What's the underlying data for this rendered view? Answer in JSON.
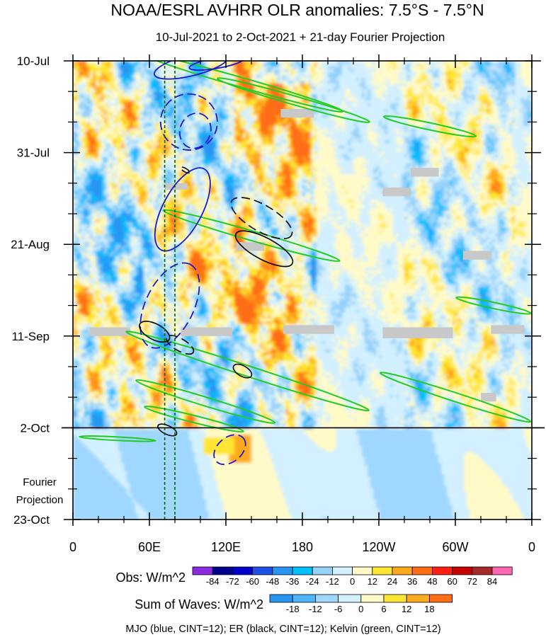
{
  "chart_data": {
    "type": "heatmap",
    "title": "NOAA/ESRL AVHRR OLR anomalies: 7.5°S - 7.5°N",
    "subtitle": "10-Jul-2021 to 2-Oct-2021 + 21-day Fourier Projection",
    "x_ticks": [
      "0",
      "60E",
      "120E",
      "180",
      "120W",
      "60W",
      "0"
    ],
    "x_tick_lon": [
      0,
      60,
      120,
      180,
      240,
      300,
      360
    ],
    "y_ticks": [
      "10-Jul",
      "31-Jul",
      "21-Aug",
      "11-Sep",
      "2-Oct",
      "23-Oct"
    ],
    "y_tick_day": [
      0,
      21,
      42,
      63,
      84,
      105
    ],
    "projection_start_day": 84,
    "projection_label_lines": [
      "Fourier",
      "Projection"
    ],
    "obs_legend": {
      "label": "Obs: W/m^2",
      "levels": [
        "-84",
        "-72",
        "-60",
        "-48",
        "-36",
        "-24",
        "-12",
        "0",
        "12",
        "24",
        "36",
        "48",
        "60",
        "72",
        "84"
      ],
      "colors": [
        "#8a2be2",
        "#00008b",
        "#0000cd",
        "#1e50e6",
        "#2896f0",
        "#00bfff",
        "#96d2fa",
        "#d2f0ff",
        "#fffac8",
        "#ffe632",
        "#ffaa1e",
        "#ff6e14",
        "#ff1e14",
        "#c80000",
        "#a52a2a",
        "#ff69b4"
      ]
    },
    "waves_legend": {
      "label": "Sum of Waves: W/m^2",
      "levels": [
        "-18",
        "-12",
        "-6",
        "0",
        "6",
        "12",
        "18"
      ],
      "colors": [
        "#2896f0",
        "#50b4fa",
        "#a0d7ff",
        "#d2f0ff",
        "#fffac8",
        "#ffe632",
        "#ffaa1e",
        "#ff6e14"
      ]
    },
    "footer": "MJO (blue, CINT=12); ER (black, CINT=12); Kelvin (green, CINT=12)",
    "contour_colors": {
      "mjo": "#1a1acc",
      "er": "#000000",
      "kelvin": "#22cc22",
      "marker": "#006400"
    },
    "marker_lons": [
      72,
      80
    ],
    "mjo_contours": [
      {
        "lon": 86,
        "day": 34,
        "rx": 36,
        "ry": 4.5,
        "angle": -62,
        "dashed": false
      },
      {
        "lon": 93,
        "day": 1,
        "rx": 30,
        "ry": 2.4,
        "angle": -14,
        "dashed": false
      },
      {
        "lon": 113,
        "day": 0.5,
        "rx": 22,
        "ry": 1.2,
        "angle": -10,
        "dashed": false
      },
      {
        "lon": 91,
        "day": 14,
        "rx": 22,
        "ry": 6.5,
        "angle": -70,
        "dashed": true
      },
      {
        "lon": 96,
        "day": 16,
        "rx": 14,
        "ry": 3.5,
        "angle": -70,
        "dashed": true
      },
      {
        "lon": 76,
        "day": 56,
        "rx": 36,
        "ry": 5.5,
        "angle": -64,
        "dashed": true
      },
      {
        "lon": 123,
        "day": 89,
        "rx": 14,
        "ry": 2.8,
        "angle": -40,
        "dashed": true
      }
    ],
    "er_contours": [
      {
        "lon": 148,
        "day": 36,
        "rx": 27,
        "ry": 3,
        "angle": 30,
        "dashed": true
      },
      {
        "lon": 150,
        "day": 43,
        "rx": 25,
        "ry": 2.5,
        "angle": 28,
        "dashed": false
      },
      {
        "lon": 64,
        "day": 62,
        "rx": 13,
        "ry": 1.8,
        "angle": 28,
        "dashed": false
      },
      {
        "lon": 84,
        "day": 65,
        "rx": 12,
        "ry": 1.4,
        "angle": 30,
        "dashed": true
      },
      {
        "lon": 133,
        "day": 71,
        "rx": 8,
        "ry": 1.2,
        "angle": 30,
        "dashed": false
      },
      {
        "lon": 74,
        "day": 84.5,
        "rx": 8,
        "ry": 1,
        "angle": 25,
        "dashed": false
      },
      {
        "lon": 88,
        "day": 25,
        "rx": 4,
        "ry": 0.4,
        "angle": 30,
        "dashed": true
      }
    ],
    "kelvin_contours": [
      {
        "lon": 133,
        "day": 5,
        "rx": 82,
        "ry": 1.1,
        "angle": 16
      },
      {
        "lon": 173,
        "day": 9,
        "rx": 62,
        "ry": 1.0,
        "angle": 16
      },
      {
        "lon": 280,
        "day": 15,
        "rx": 37,
        "ry": 0.8,
        "angle": 12
      },
      {
        "lon": 140,
        "day": 40,
        "rx": 72,
        "ry": 1.1,
        "angle": 16
      },
      {
        "lon": 330,
        "day": 56,
        "rx": 30,
        "ry": 0.7,
        "angle": 12
      },
      {
        "lon": 137,
        "day": 71,
        "rx": 100,
        "ry": 1.2,
        "angle": 18
      },
      {
        "lon": 104,
        "day": 78,
        "rx": 57,
        "ry": 1.0,
        "angle": 17
      },
      {
        "lon": 95,
        "day": 82,
        "rx": 40,
        "ry": 0.8,
        "angle": 14
      },
      {
        "lon": 300,
        "day": 77,
        "rx": 62,
        "ry": 1.0,
        "angle": 18
      },
      {
        "lon": 35,
        "day": 86.5,
        "rx": 30,
        "ry": 0.4,
        "angle": 3
      }
    ],
    "missing_data": [
      {
        "lon": 13,
        "day": 61,
        "w": 32,
        "h": 2
      },
      {
        "lon": 85,
        "day": 61,
        "w": 40,
        "h": 2
      },
      {
        "lon": 165,
        "day": 60.5,
        "w": 40,
        "h": 2
      },
      {
        "lon": 243,
        "day": 61,
        "w": 55,
        "h": 2.5
      },
      {
        "lon": 328,
        "day": 60.5,
        "w": 26,
        "h": 2
      },
      {
        "lon": 163,
        "day": 11,
        "w": 26,
        "h": 2
      },
      {
        "lon": 265,
        "day": 24.5,
        "w": 22,
        "h": 2
      },
      {
        "lon": 243,
        "day": 29,
        "w": 22,
        "h": 2
      },
      {
        "lon": 306,
        "day": 43.5,
        "w": 22,
        "h": 2
      },
      {
        "lon": 128,
        "day": 41.5,
        "w": 22,
        "h": 2
      },
      {
        "lon": 72,
        "day": 28,
        "w": 18,
        "h": 1.5
      },
      {
        "lon": 320,
        "day": 76,
        "w": 12,
        "h": 2
      }
    ]
  }
}
